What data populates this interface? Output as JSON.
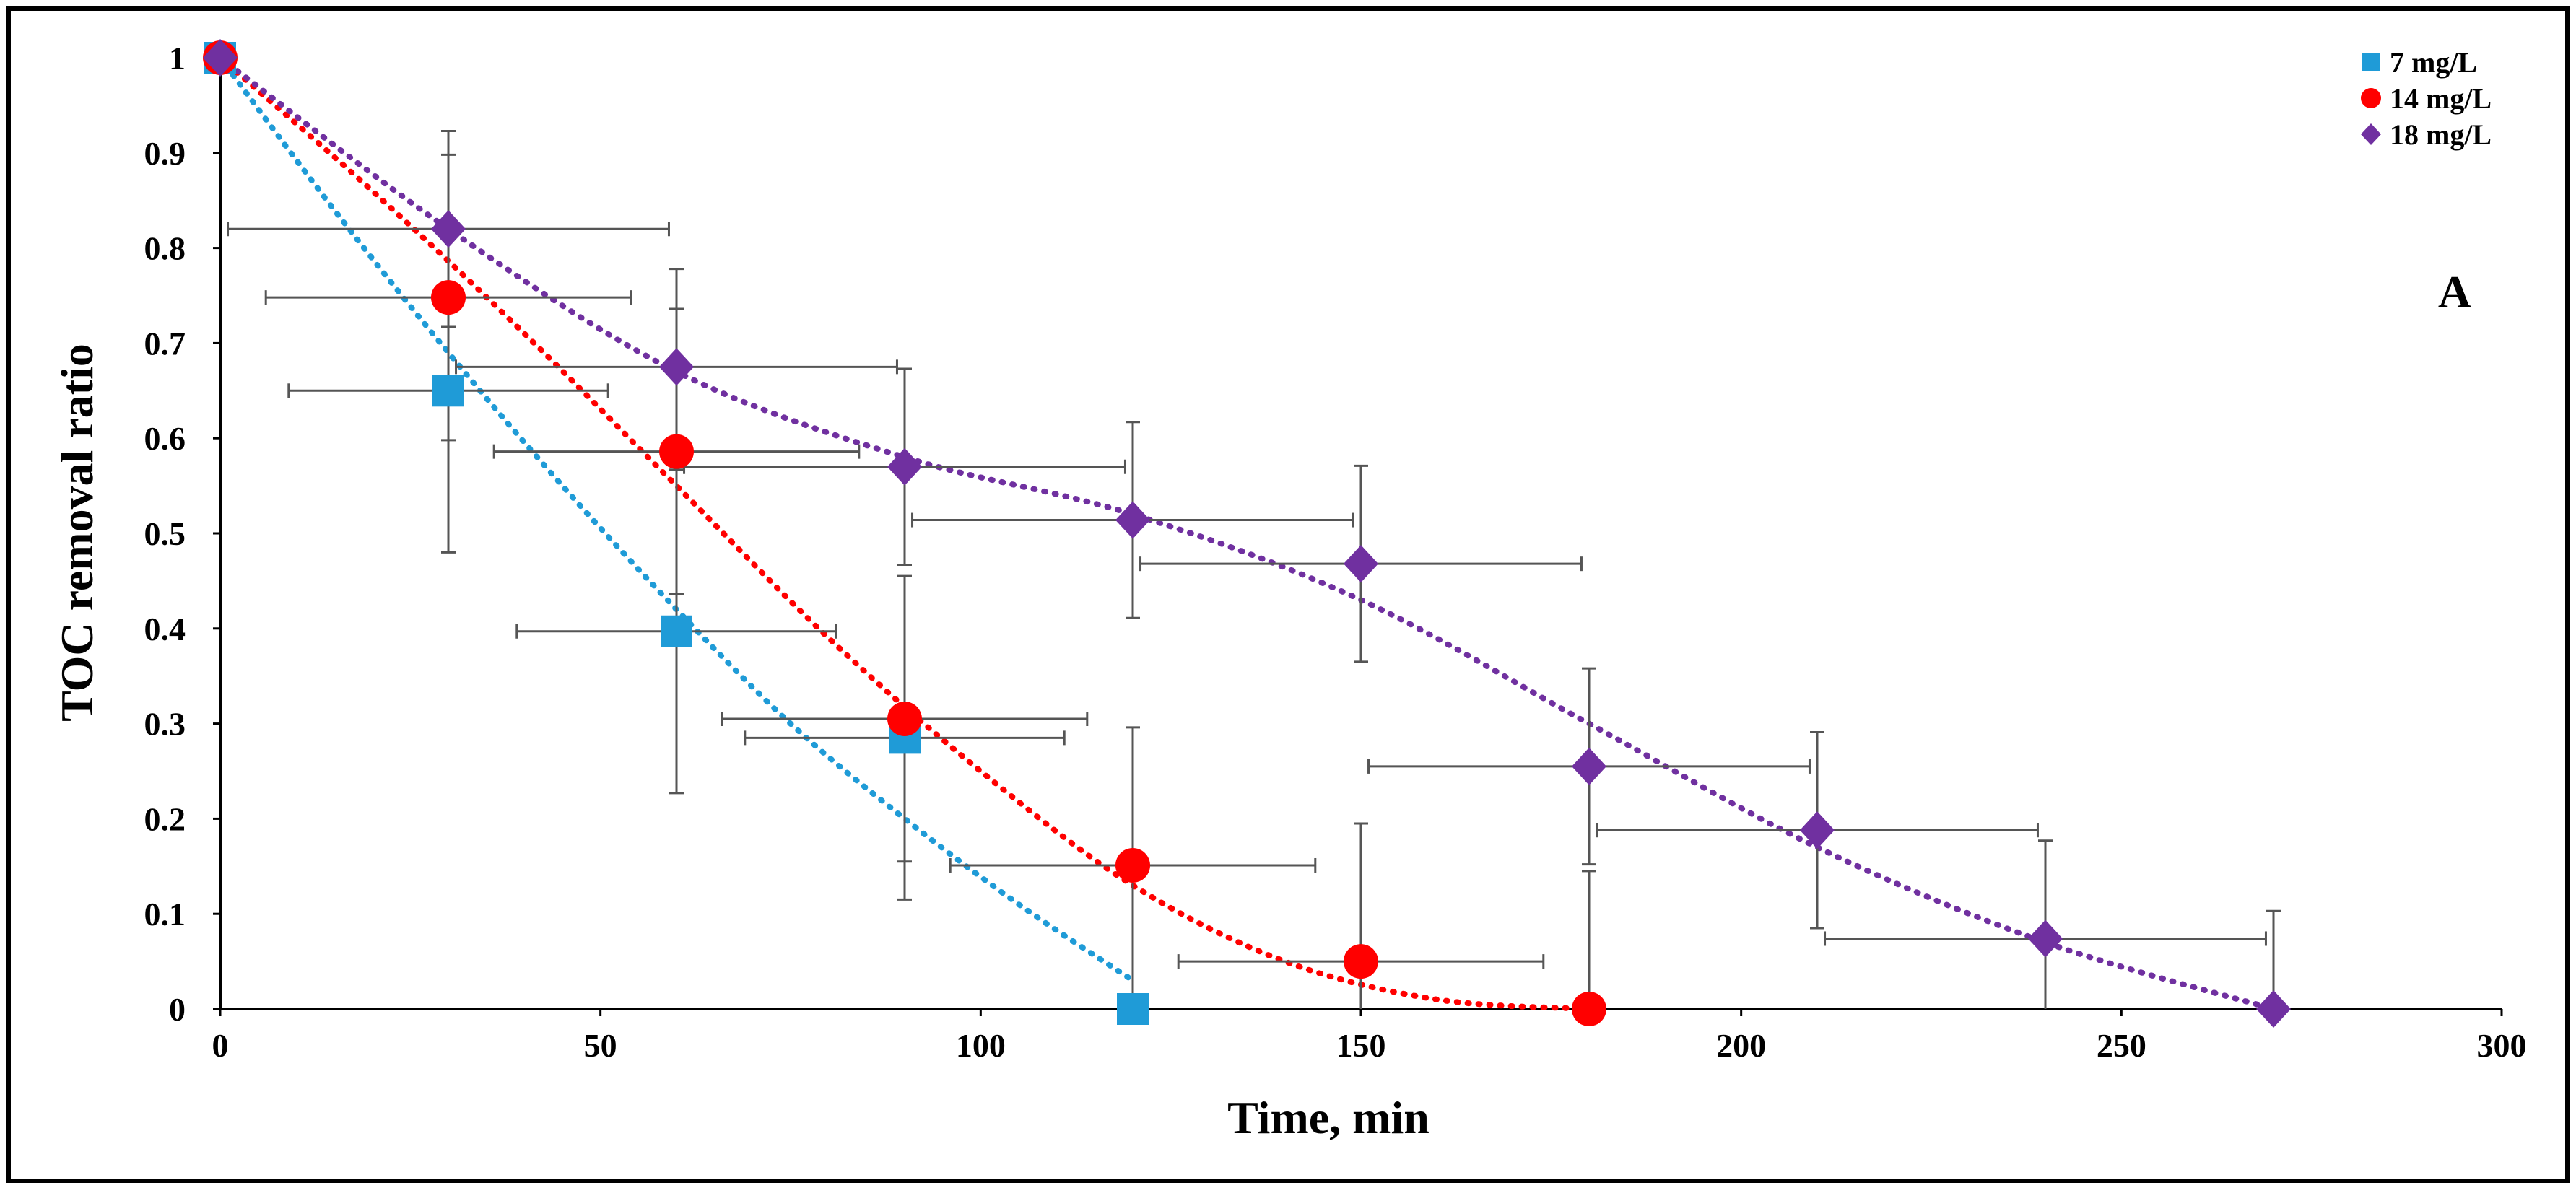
{
  "chart_data": {
    "type": "scatter",
    "panel_label": "A",
    "xlabel": "Time, min",
    "ylabel": "TOC removal ratio",
    "xlim": [
      0,
      300
    ],
    "ylim": [
      0,
      1
    ],
    "xticks": [
      "0",
      "50",
      "100",
      "150",
      "200",
      "250",
      "300"
    ],
    "yticks": [
      "0",
      "0.1",
      "0.2",
      "0.3",
      "0.4",
      "0.5",
      "0.6",
      "0.7",
      "0.8",
      "0.9",
      "1"
    ],
    "legend_position": "top-right",
    "series": [
      {
        "name": "7 mg/L",
        "marker": "square",
        "color": "#1f9bd7",
        "trendline": "polynomial (dotted)",
        "points": [
          {
            "x": 0,
            "y": 1,
            "xerr": 0,
            "yerr": 0
          },
          {
            "x": 30,
            "y": 0.65,
            "xerr": 21,
            "yerr": 0.17
          },
          {
            "x": 60,
            "y": 0.397,
            "xerr": 21,
            "yerr": 0.17
          },
          {
            "x": 90,
            "y": 0.285,
            "xerr": 21,
            "yerr": 0.17
          },
          {
            "x": 120,
            "y": 0,
            "xerr": 0,
            "yerr": 0
          }
        ],
        "trend_x": [
          0,
          15,
          30,
          45,
          60,
          75,
          90,
          105,
          120
        ],
        "trend_y": [
          1,
          0.84,
          0.69,
          0.55,
          0.42,
          0.3,
          0.2,
          0.11,
          0.03
        ]
      },
      {
        "name": "14 mg/L",
        "marker": "circle",
        "color": "#ff0000",
        "trendline": "polynomial (dotted)",
        "points": [
          {
            "x": 0,
            "y": 1,
            "xerr": 0,
            "yerr": 0
          },
          {
            "x": 30,
            "y": 0.748,
            "xerr": 24,
            "yerr": 0.15
          },
          {
            "x": 60,
            "y": 0.586,
            "xerr": 24,
            "yerr": 0.15
          },
          {
            "x": 90,
            "y": 0.305,
            "xerr": 24,
            "yerr": 0.15
          },
          {
            "x": 120,
            "y": 0.151,
            "xerr": 24,
            "yerr": 0.145
          },
          {
            "x": 150,
            "y": 0.05,
            "xerr": 24,
            "yerr": 0.145
          },
          {
            "x": 180,
            "y": 0,
            "xerr": 0,
            "yerr": 0.145
          }
        ],
        "trend_x": [
          0,
          20,
          40,
          60,
          80,
          100,
          120,
          140,
          160,
          180
        ],
        "trend_y": [
          1,
          0.86,
          0.71,
          0.55,
          0.39,
          0.25,
          0.13,
          0.05,
          0.01,
          0
        ]
      },
      {
        "name": "18 mg/L",
        "marker": "diamond",
        "color": "#7030a0",
        "trendline": "polynomial (dotted)",
        "points": [
          {
            "x": 0,
            "y": 1,
            "xerr": 0,
            "yerr": 0
          },
          {
            "x": 30,
            "y": 0.82,
            "xerr": 29,
            "yerr": 0.103
          },
          {
            "x": 60,
            "y": 0.675,
            "xerr": 29,
            "yerr": 0.103
          },
          {
            "x": 90,
            "y": 0.57,
            "xerr": 29,
            "yerr": 0.103
          },
          {
            "x": 120,
            "y": 0.514,
            "xerr": 29,
            "yerr": 0.103
          },
          {
            "x": 150,
            "y": 0.468,
            "xerr": 29,
            "yerr": 0.103
          },
          {
            "x": 180,
            "y": 0.255,
            "xerr": 29,
            "yerr": 0.103
          },
          {
            "x": 210,
            "y": 0.188,
            "xerr": 29,
            "yerr": 0.103
          },
          {
            "x": 240,
            "y": 0.074,
            "xerr": 29,
            "yerr": 0.103
          },
          {
            "x": 270,
            "y": 0,
            "xerr": 0,
            "yerr": 0.103
          }
        ],
        "trend_x": [
          0,
          30,
          60,
          90,
          120,
          150,
          180,
          210,
          240,
          270
        ],
        "trend_y": [
          1,
          0.82,
          0.67,
          0.58,
          0.52,
          0.43,
          0.3,
          0.17,
          0.07,
          0
        ]
      }
    ]
  }
}
